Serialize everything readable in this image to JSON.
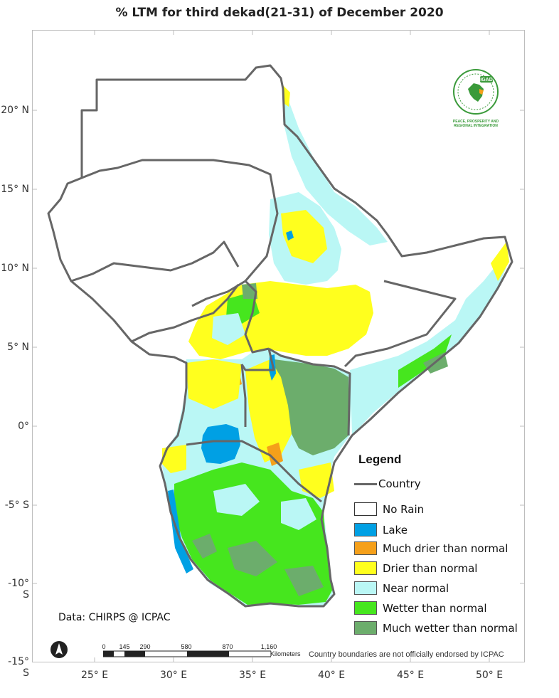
{
  "title": "% LTM  for third  dekad(21-31)  of December 2020",
  "lat_labels": [
    "20° N",
    "15° N",
    "10° N",
    "5° N",
    "0°",
    "-5° S",
    "-10° S",
    "-15° S"
  ],
  "lon_labels": [
    "25° E",
    "30° E",
    "35° E",
    "40° E",
    "45° E",
    "50° E"
  ],
  "legend": {
    "title": "Legend",
    "country_label": "Country",
    "items": [
      {
        "label": "No Rain",
        "color": "#ffffff"
      },
      {
        "label": "Lake",
        "color": "#00a0e4"
      },
      {
        "label": "Much drier than normal",
        "color": "#f5a01a"
      },
      {
        "label": "Drier than normal",
        "color": "#ffff1e"
      },
      {
        "label": "Near normal",
        "color": "#baf7f5"
      },
      {
        "label": "Wetter than normal",
        "color": "#46e61e"
      },
      {
        "label": "Much wetter than normal",
        "color": "#6cad6c"
      }
    ]
  },
  "source": "Data: CHIRPS @ ICPAC",
  "disclaimer": "Country boundaries are not officially endorsed by ICPAC",
  "scale_bar": {
    "ticks": [
      "0",
      "145",
      "290",
      "580",
      "870",
      "1,160"
    ],
    "unit": "Kilometers"
  },
  "logo": {
    "name": "IGAD",
    "tagline_1": "PEACE, PROSPERITY AND",
    "tagline_2": "REGIONAL INTEGRATION"
  },
  "colors": {
    "border": "#666666",
    "graticule": "#bdbdbd"
  }
}
